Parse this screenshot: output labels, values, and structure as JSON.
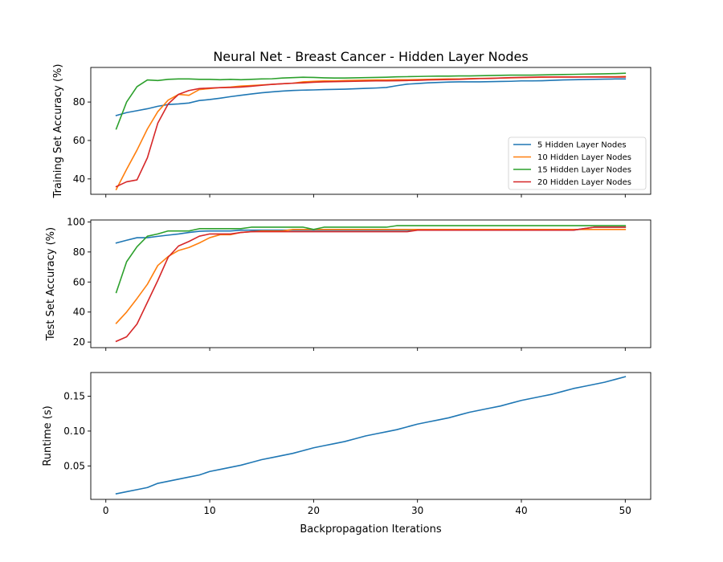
{
  "figure": {
    "title": "Neural Net - Breast Cancer - Hidden Layer Nodes",
    "xlabel": "Backpropagation Iterations",
    "colors": {
      "blue": "#1f77b4",
      "orange": "#ff7f0e",
      "green": "#2ca02c",
      "red": "#d62728"
    }
  },
  "chart_data": [
    {
      "type": "line",
      "ylabel": "Training Set Accuracy (%)",
      "xlim": [
        -1.45,
        52.45
      ],
      "ylim": [
        32,
        98
      ],
      "xticks": [
        0,
        10,
        20,
        30,
        40,
        50
      ],
      "yticks": [
        40,
        60,
        80
      ],
      "x_tick_labels_visible": false,
      "legend": {
        "position": "lower-right"
      },
      "x": [
        1,
        2,
        3,
        4,
        5,
        6,
        7,
        8,
        9,
        10,
        11,
        12,
        13,
        14,
        15,
        16,
        17,
        18,
        19,
        20,
        21,
        22,
        23,
        24,
        25,
        26,
        27,
        28,
        29,
        30,
        31,
        32,
        33,
        34,
        35,
        36,
        37,
        38,
        39,
        40,
        41,
        42,
        43,
        44,
        45,
        46,
        47,
        48,
        49,
        50
      ],
      "series": [
        {
          "name": "5 Hidden Layer Nodes",
          "color": "#1f77b4",
          "values": [
            73,
            74.5,
            75.5,
            76.5,
            77.8,
            78.7,
            79,
            79.5,
            80.8,
            81.3,
            82,
            82.8,
            83.5,
            84.2,
            84.8,
            85.3,
            85.7,
            86,
            86.2,
            86.3,
            86.5,
            86.6,
            86.7,
            86.9,
            87.1,
            87.3,
            87.6,
            88.5,
            89.3,
            89.6,
            90,
            90.2,
            90.4,
            90.5,
            90.5,
            90.5,
            90.6,
            90.7,
            90.8,
            91,
            91,
            91.1,
            91.3,
            91.5,
            91.6,
            91.7,
            91.8,
            91.9,
            92,
            92
          ]
        },
        {
          "name": "10 Hidden Layer Nodes",
          "color": "#ff7f0e",
          "values": [
            34.5,
            45,
            55,
            66,
            75,
            81,
            84,
            83.5,
            86.5,
            87,
            87.5,
            87.8,
            88.3,
            88.6,
            88.9,
            89.2,
            89.5,
            89.8,
            90.5,
            90.8,
            91,
            91,
            91.2,
            91.3,
            91.4,
            91.5,
            91.5,
            91.6,
            91.6,
            91.7,
            91.8,
            91.9,
            92,
            92,
            92.2,
            92.3,
            92.4,
            92.5,
            92.6,
            92.7,
            92.8,
            92.9,
            93,
            93,
            93,
            93.1,
            93.1,
            93.2,
            93.2,
            93.3
          ]
        },
        {
          "name": "15 Hidden Layer Nodes",
          "color": "#2ca02c",
          "values": [
            66,
            80,
            88,
            91.5,
            91.2,
            91.8,
            92,
            92,
            91.8,
            91.8,
            91.6,
            91.8,
            91.6,
            91.8,
            92,
            92.1,
            92.5,
            92.7,
            92.9,
            92.8,
            92.6,
            92.5,
            92.5,
            92.6,
            92.7,
            92.8,
            92.9,
            93.1,
            93.2,
            93.3,
            93.4,
            93.5,
            93.5,
            93.6,
            93.6,
            93.7,
            93.8,
            93.9,
            94,
            94,
            94,
            94.1,
            94.2,
            94.3,
            94.4,
            94.5,
            94.6,
            94.7,
            94.8,
            95
          ]
        },
        {
          "name": "20 Hidden Layer Nodes",
          "color": "#d62728",
          "values": [
            36,
            38.5,
            39.5,
            51,
            69,
            79,
            84,
            86,
            87,
            87.3,
            87.5,
            87.6,
            87.8,
            88.2,
            88.7,
            89.2,
            89.5,
            89.8,
            90,
            90.3,
            90.5,
            90.6,
            90.7,
            90.8,
            90.9,
            91,
            91,
            91.1,
            91.2,
            91.3,
            91.5,
            91.6,
            91.7,
            91.8,
            92,
            92.2,
            92.3,
            92.5,
            92.7,
            92.8,
            92.9,
            93,
            93,
            93,
            93,
            93,
            93,
            93,
            93,
            93
          ]
        }
      ]
    },
    {
      "type": "line",
      "ylabel": "Test Set Accuracy (%)",
      "xlim": [
        -1.45,
        52.45
      ],
      "ylim": [
        16.3,
        101.3
      ],
      "xticks": [
        0,
        10,
        20,
        30,
        40,
        50
      ],
      "yticks": [
        20,
        40,
        60,
        80,
        100
      ],
      "x_tick_labels_visible": false,
      "x": [
        1,
        2,
        3,
        4,
        5,
        6,
        7,
        8,
        9,
        10,
        11,
        12,
        13,
        14,
        15,
        16,
        17,
        18,
        19,
        20,
        21,
        22,
        23,
        24,
        25,
        26,
        27,
        28,
        29,
        30,
        31,
        32,
        33,
        34,
        35,
        36,
        37,
        38,
        39,
        40,
        41,
        42,
        43,
        44,
        45,
        46,
        47,
        48,
        49,
        50
      ],
      "series": [
        {
          "name": "5 Hidden Layer Nodes",
          "color": "#1f77b4",
          "values": [
            86,
            87.8,
            89.5,
            89.5,
            90.4,
            91.2,
            92,
            93,
            93.8,
            94,
            94,
            94,
            94.5,
            94.5,
            94.5,
            94.5,
            94.5,
            94.5,
            94.5,
            94.5,
            94.5,
            94.5,
            94.5,
            94.5,
            94.5,
            94.5,
            94.5,
            94.5,
            94.5,
            94.5,
            94.5,
            94.5,
            94.5,
            94.5,
            94.5,
            94.5,
            94.5,
            94.5,
            94.5,
            94.5,
            94.5,
            94.5,
            94.5,
            94.5,
            94.5,
            95.5,
            96.5,
            96.5,
            96.5,
            96.5
          ]
        },
        {
          "name": "10 Hidden Layer Nodes",
          "color": "#ff7f0e",
          "values": [
            32.5,
            40,
            49,
            58.5,
            71,
            77,
            81,
            83,
            86,
            89.5,
            91.5,
            91.5,
            93,
            93.5,
            94,
            94,
            94,
            95,
            95,
            95,
            95,
            95,
            95,
            95,
            95,
            95,
            95,
            95,
            95,
            95,
            95,
            95,
            95,
            95,
            95,
            95,
            95,
            95,
            95,
            95,
            95,
            95,
            95,
            95,
            95,
            95,
            95,
            95,
            95,
            95
          ]
        },
        {
          "name": "15 Hidden Layer Nodes",
          "color": "#2ca02c",
          "values": [
            53,
            73.5,
            83.5,
            90.5,
            92,
            94,
            94,
            94,
            95.5,
            95.5,
            95.5,
            95.5,
            95.5,
            96.5,
            96.5,
            96.5,
            96.5,
            96.5,
            96.5,
            95,
            96.5,
            96.5,
            96.5,
            96.5,
            96.5,
            96.5,
            96.5,
            97.5,
            97.5,
            97.5,
            97.5,
            97.5,
            97.5,
            97.5,
            97.5,
            97.5,
            97.5,
            97.5,
            97.5,
            97.5,
            97.5,
            97.5,
            97.5,
            97.5,
            97.5,
            97.5,
            97.5,
            97.5,
            97.5,
            97.5
          ]
        },
        {
          "name": "20 Hidden Layer Nodes",
          "color": "#d62728",
          "values": [
            20.5,
            23.5,
            32,
            46.5,
            61,
            76.5,
            84,
            87,
            90.5,
            92,
            92,
            92,
            93,
            93.5,
            93.5,
            93.5,
            93.5,
            93.5,
            93.5,
            93.5,
            93.5,
            93.5,
            93.5,
            93.5,
            93.5,
            93.5,
            93.5,
            93.5,
            93.5,
            94.5,
            94.5,
            94.5,
            94.5,
            94.5,
            94.5,
            94.5,
            94.5,
            94.5,
            94.5,
            94.5,
            94.5,
            94.5,
            94.5,
            94.5,
            94.5,
            95.5,
            96.5,
            96.5,
            96.5,
            96.5
          ]
        }
      ]
    },
    {
      "type": "line",
      "ylabel": "Runtime (s)",
      "xlim": [
        -1.45,
        52.45
      ],
      "ylim": [
        0.002,
        0.184
      ],
      "xticks": [
        0,
        10,
        20,
        30,
        40,
        50
      ],
      "yticks": [
        0.05,
        0.1,
        0.15
      ],
      "ytick_labels": [
        "0.05",
        "0.10",
        "0.15"
      ],
      "x_tick_labels_visible": true,
      "x": [
        1,
        2,
        3,
        4,
        5,
        6,
        7,
        8,
        9,
        10,
        11,
        12,
        13,
        14,
        15,
        16,
        17,
        18,
        19,
        20,
        21,
        22,
        23,
        24,
        25,
        26,
        27,
        28,
        29,
        30,
        31,
        32,
        33,
        34,
        35,
        36,
        37,
        38,
        39,
        40,
        41,
        42,
        43,
        44,
        45,
        46,
        47,
        48,
        49,
        50
      ],
      "series": [
        {
          "color": "#1f77b4",
          "values": [
            0.01,
            0.013,
            0.016,
            0.019,
            0.025,
            0.028,
            0.031,
            0.034,
            0.037,
            0.042,
            0.045,
            0.048,
            0.051,
            0.055,
            0.059,
            0.062,
            0.065,
            0.068,
            0.072,
            0.076,
            0.079,
            0.082,
            0.085,
            0.089,
            0.093,
            0.096,
            0.099,
            0.102,
            0.106,
            0.11,
            0.113,
            0.116,
            0.119,
            0.123,
            0.127,
            0.13,
            0.133,
            0.136,
            0.14,
            0.144,
            0.147,
            0.15,
            0.153,
            0.157,
            0.161,
            0.164,
            0.167,
            0.17,
            0.174,
            0.178
          ]
        }
      ]
    }
  ]
}
